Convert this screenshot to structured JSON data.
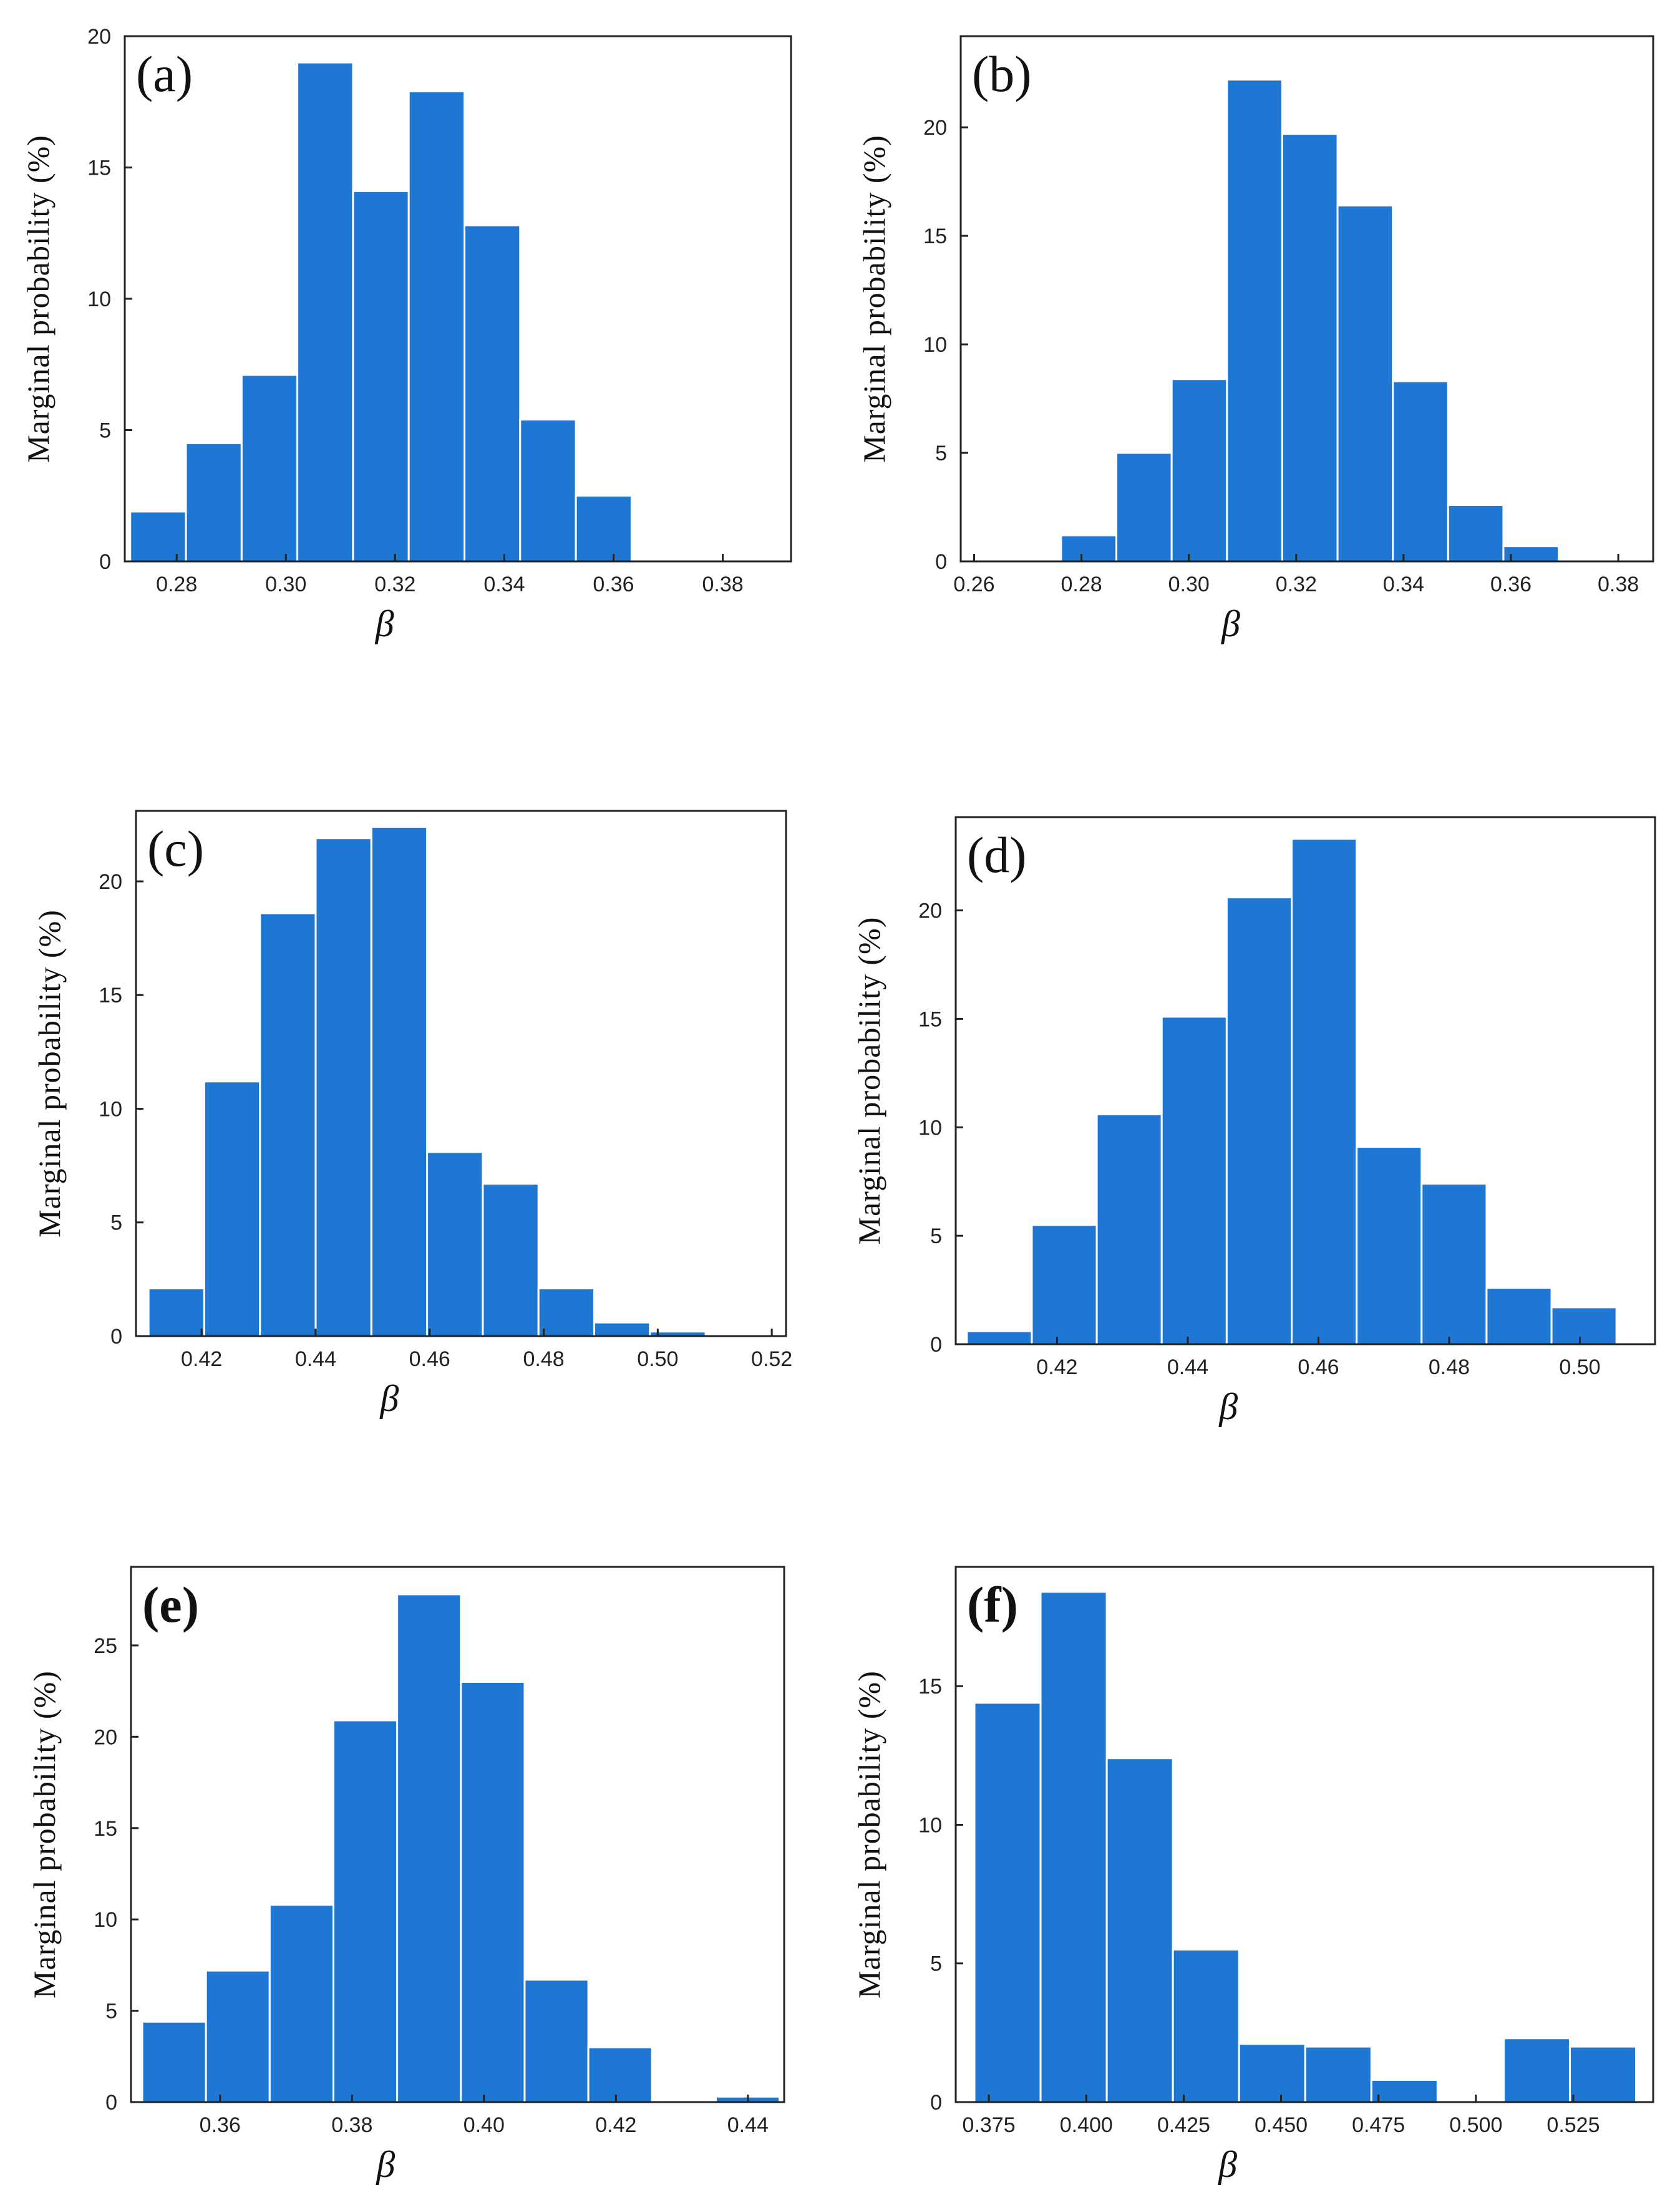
{
  "chart_data": [
    {
      "panel": "(a)",
      "type": "bar",
      "bold_label": false,
      "xlabel": "β",
      "ylabel": "Marginal  probability  (%)",
      "xlim": [
        0.2705,
        0.3925
      ],
      "ylim": [
        0,
        20
      ],
      "bin_start": 0.2715,
      "bin_width": 0.0102,
      "values": [
        1.9,
        4.5,
        7.1,
        19.0,
        14.1,
        17.9,
        12.8,
        5.4,
        2.5
      ],
      "xticks": [
        "0.28",
        "0.30",
        "0.32",
        "0.34",
        "0.36",
        "0.38"
      ],
      "yticks": [
        "0",
        "5",
        "10",
        "15",
        "20"
      ],
      "color": "#1f77d4"
    },
    {
      "panel": "(b)",
      "type": "bar",
      "bold_label": false,
      "xlabel": "β",
      "ylabel": "Marginal  probability  (%)",
      "xlim": [
        0.2575,
        0.3865
      ],
      "ylim": [
        0,
        24.2
      ],
      "bin_start": 0.2762,
      "bin_width": 0.0103,
      "values": [
        1.2,
        5.0,
        8.4,
        22.2,
        19.7,
        16.4,
        8.3,
        2.6,
        0.7
      ],
      "xticks": [
        "0.26",
        "0.28",
        "0.30",
        "0.32",
        "0.34",
        "0.36",
        "0.38"
      ],
      "yticks": [
        "0",
        "5",
        "10",
        "15",
        "20"
      ],
      "color": "#1f77d4"
    },
    {
      "panel": "(c)",
      "type": "bar",
      "bold_label": false,
      "xlabel": "β",
      "ylabel": "Marginal  probability  (%)",
      "xlim": [
        0.4085,
        0.5225
      ],
      "ylim": [
        0,
        23.1
      ],
      "bin_start": 0.4107,
      "bin_width": 0.00977,
      "values": [
        2.1,
        11.2,
        18.6,
        21.9,
        22.4,
        8.1,
        6.7,
        2.1,
        0.6,
        0.2
      ],
      "xticks": [
        "0.42",
        "0.44",
        "0.46",
        "0.48",
        "0.50",
        "0.52"
      ],
      "yticks": [
        "0",
        "5",
        "10",
        "15",
        "20"
      ],
      "color": "#1f77d4"
    },
    {
      "panel": "(d)",
      "type": "bar",
      "bold_label": false,
      "xlabel": "β",
      "ylabel": "Marginal  probability  (%)",
      "xlim": [
        0.4045,
        0.5115
      ],
      "ylim": [
        0,
        24.3
      ],
      "bin_start": 0.4062,
      "bin_width": 0.00994,
      "values": [
        0.6,
        5.5,
        10.6,
        15.1,
        20.6,
        23.3,
        9.1,
        7.4,
        2.6,
        1.7
      ],
      "xticks": [
        "0.42",
        "0.44",
        "0.46",
        "0.48",
        "0.50"
      ],
      "yticks": [
        "0",
        "5",
        "10",
        "15",
        "20"
      ],
      "color": "#1f77d4"
    },
    {
      "panel": "(e)",
      "type": "bar",
      "bold_label": true,
      "xlabel": "β",
      "ylabel": "Marginal  probability  (%)",
      "xlim": [
        0.3465,
        0.4455
      ],
      "ylim": [
        0,
        29.3
      ],
      "bin_start": 0.3482,
      "bin_width": 0.00966,
      "values": [
        4.4,
        7.2,
        10.8,
        20.9,
        27.8,
        23.0,
        6.7,
        3.0,
        0.1,
        0.3
      ],
      "xticks": [
        "0.36",
        "0.38",
        "0.40",
        "0.42",
        "0.44"
      ],
      "yticks": [
        "0",
        "5",
        "10",
        "15",
        "20",
        "25"
      ],
      "color": "#1f77d4"
    },
    {
      "panel": "(f)",
      "type": "bar",
      "bold_label": true,
      "xlabel": "β",
      "ylabel": "Marginal  probability  (%)",
      "xlim": [
        0.3665,
        0.5455
      ],
      "ylim": [
        0,
        19.3
      ],
      "bin_start": 0.3713,
      "bin_width": 0.01698,
      "values": [
        14.4,
        18.4,
        12.4,
        5.5,
        2.1,
        2.0,
        0.8,
        0,
        2.3,
        2.0
      ],
      "xticks": [
        "0.375",
        "0.400",
        "0.425",
        "0.450",
        "0.475",
        "0.500",
        "0.525"
      ],
      "yticks": [
        "0",
        "5",
        "10",
        "15"
      ],
      "color": "#1f77d4"
    }
  ]
}
